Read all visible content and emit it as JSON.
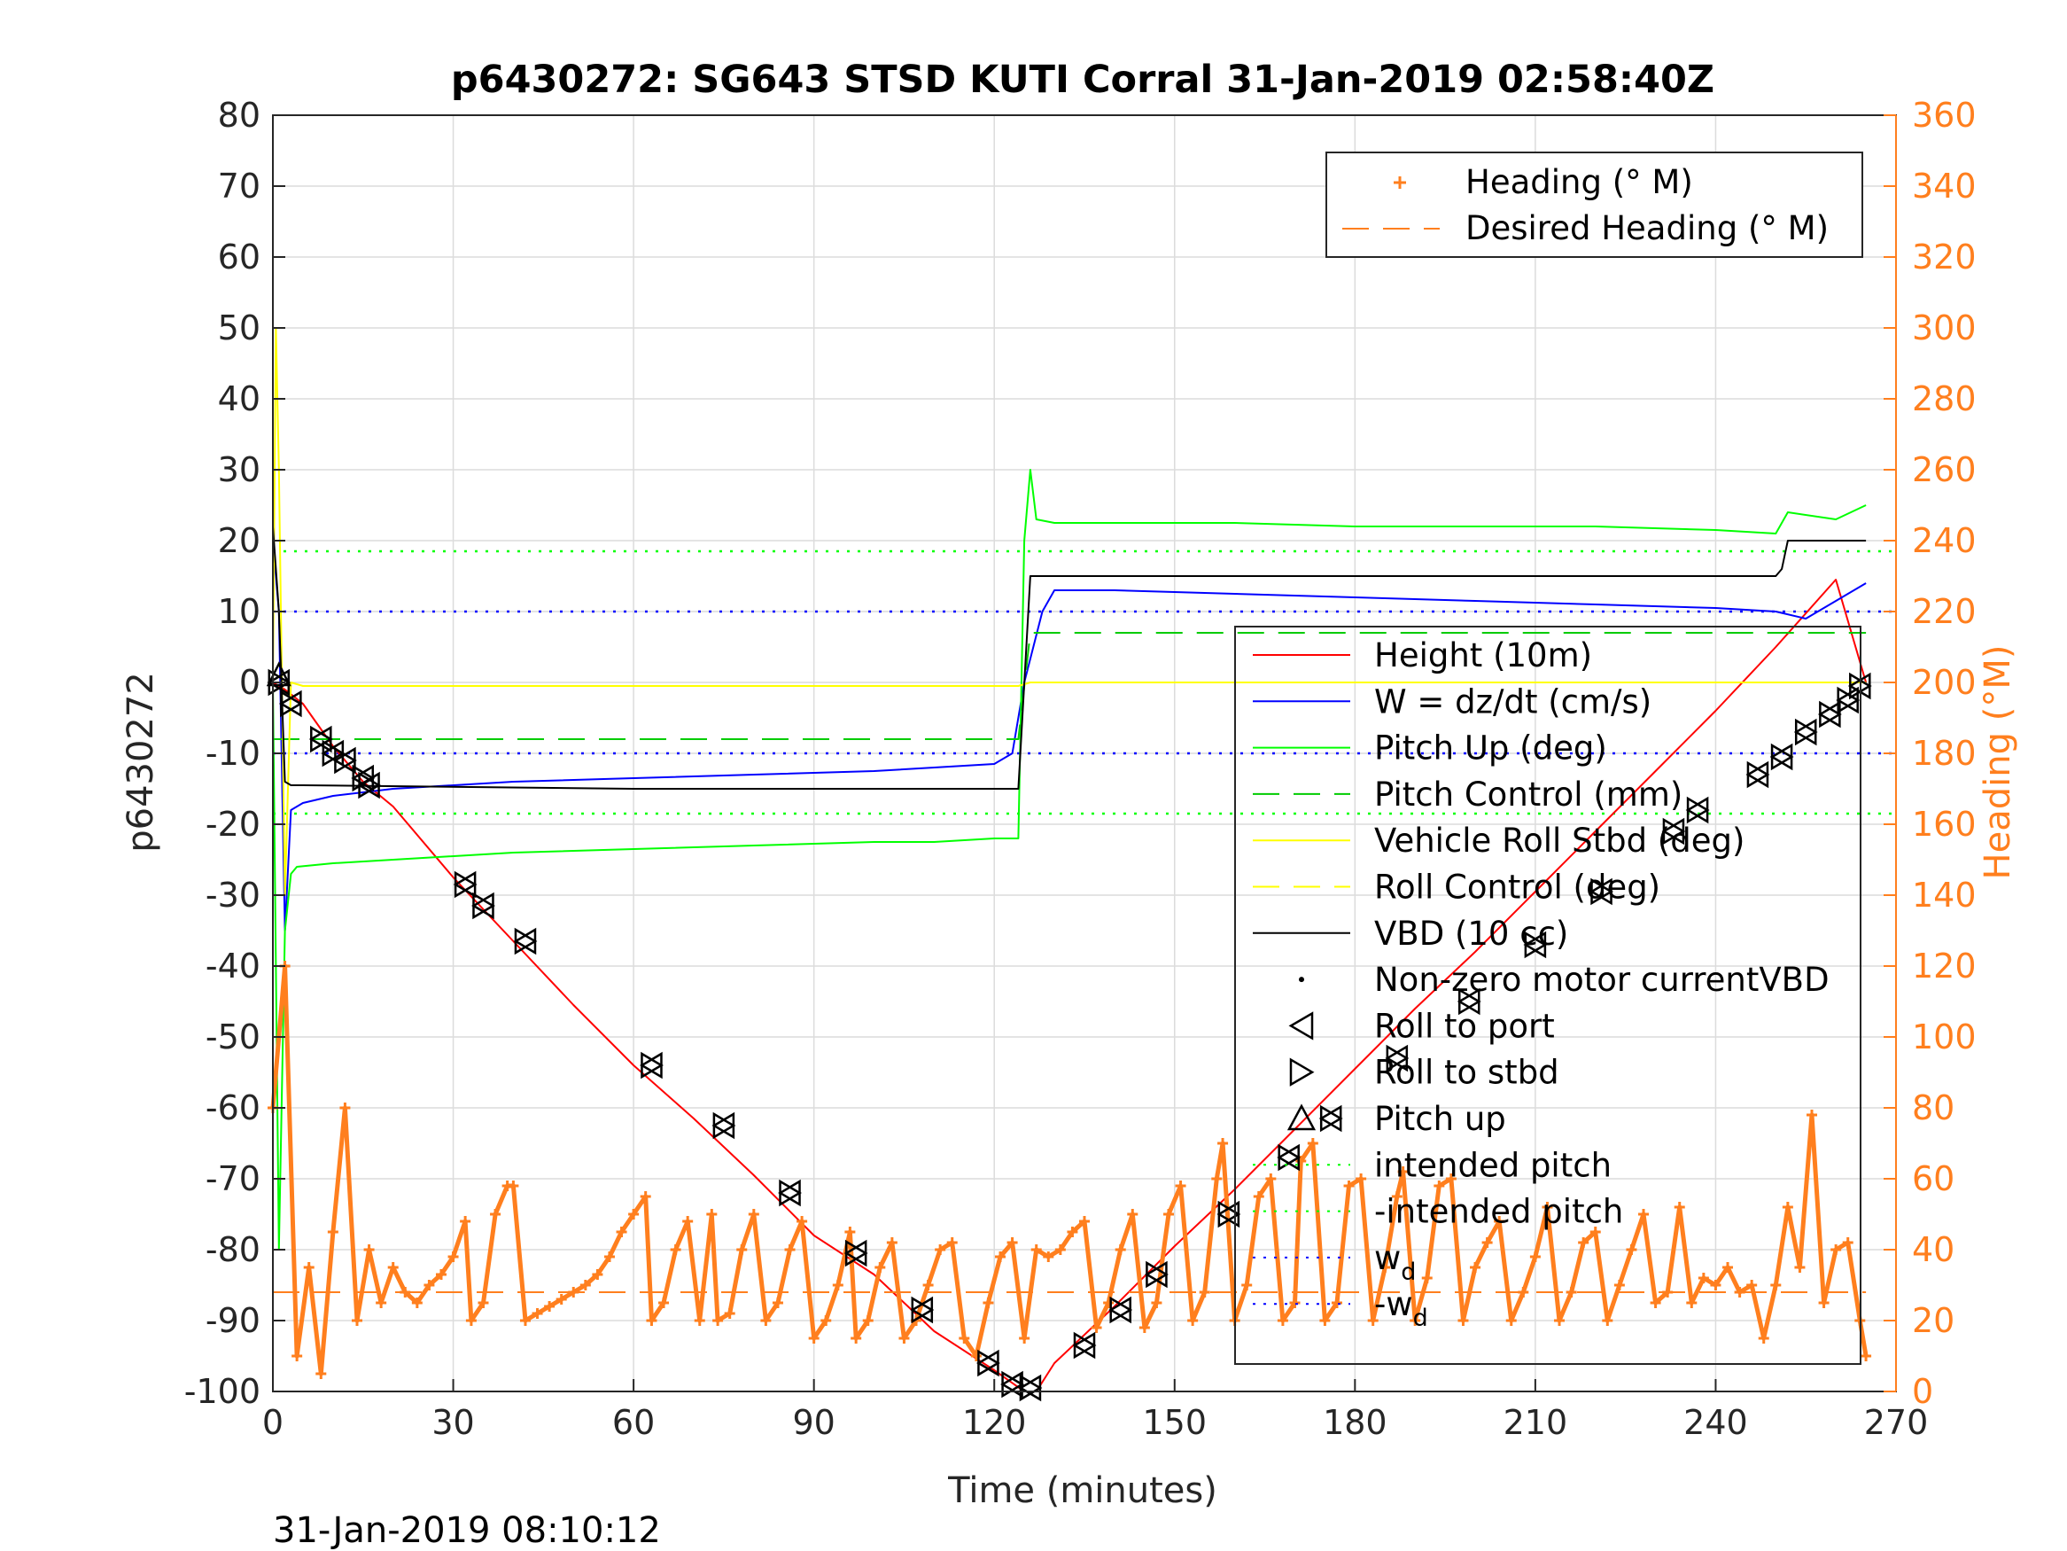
{
  "chart_data": {
    "type": "line",
    "title": "p6430272: SG643 STSD KUTI Corral 31-Jan-2019 02:58:40Z",
    "xlabel": "Time (minutes)",
    "ylabel": "p6430272",
    "y2label": "Heading (°M)",
    "footer": "31-Jan-2019 08:10:12",
    "xlim": [
      0,
      270
    ],
    "ylim": [
      -100,
      80
    ],
    "y2lim": [
      0,
      360
    ],
    "xticks": [
      0,
      30,
      60,
      90,
      120,
      150,
      180,
      210,
      240,
      270
    ],
    "yticks": [
      -100,
      -90,
      -80,
      -70,
      -60,
      -50,
      -40,
      -30,
      -20,
      -10,
      0,
      10,
      20,
      30,
      40,
      50,
      60,
      70,
      80
    ],
    "y2ticks": [
      0,
      20,
      40,
      60,
      80,
      100,
      120,
      140,
      160,
      180,
      200,
      220,
      240,
      260,
      280,
      300,
      320,
      340,
      360
    ],
    "grid": true,
    "colors": {
      "height": "#ff0000",
      "w": "#0000ff",
      "pitch_up": "#00ff00",
      "pitch_control": "#00cc00",
      "roll": "#ffff00",
      "vbd": "#000000",
      "heading": "#ff7f1e",
      "intended_pitch": "#00ff00",
      "wd": "#0000ff"
    },
    "legend_right": {
      "placement": "top-right",
      "entries": [
        "Heading (° M)",
        "Desired Heading (° M)"
      ]
    },
    "legend_left": {
      "placement": "center-right",
      "entries": [
        "Height (10m)",
        "W = dz/dt (cm/s)",
        "Pitch Up (deg)",
        "Pitch Control (mm)",
        "Vehicle Roll Stbd (deg)",
        "Roll Control (deg)",
        "VBD (10 cc)",
        "Non-zero motor currentVBD",
        "Roll to port",
        "Roll to stbd",
        "Pitch up",
        "intended pitch",
        "-intended pitch",
        "w",
        "-w"
      ],
      "subscript": "d"
    },
    "series": [
      {
        "name": "Height (10m)",
        "axis": "left",
        "x": [
          0,
          2,
          5,
          10,
          15,
          20,
          30,
          40,
          50,
          60,
          70,
          80,
          90,
          100,
          110,
          120,
          125,
          127,
          130,
          140,
          150,
          160,
          170,
          180,
          190,
          200,
          210,
          220,
          230,
          240,
          250,
          260,
          265
        ],
        "y": [
          0,
          -1,
          -3,
          -9,
          -14,
          -17.5,
          -27.5,
          -36.5,
          -45.5,
          -54,
          -61.5,
          -69.5,
          -78,
          -83.5,
          -91.5,
          -97,
          -100,
          -100,
          -96,
          -88,
          -79.5,
          -71.5,
          -63,
          -54.5,
          -46,
          -38,
          -29.5,
          -21,
          -12.5,
          -4,
          5,
          14.5,
          0
        ]
      },
      {
        "name": "W = dz/dt (cm/s)",
        "axis": "left",
        "x": [
          0,
          1,
          2,
          3,
          5,
          10,
          20,
          40,
          60,
          80,
          100,
          110,
          120,
          123,
          125,
          128,
          130,
          140,
          160,
          180,
          200,
          220,
          240,
          250,
          255,
          265
        ],
        "y": [
          20,
          10,
          -35,
          -18,
          -17,
          -16,
          -15,
          -14,
          -13.5,
          -13,
          -12.5,
          -12,
          -11.5,
          -10,
          0,
          10,
          13,
          13,
          12.5,
          12,
          11.5,
          11,
          10.5,
          10,
          9,
          14
        ]
      },
      {
        "name": "Pitch Up (deg)",
        "axis": "left",
        "x": [
          0,
          1,
          2,
          3,
          4,
          10,
          20,
          40,
          60,
          80,
          100,
          110,
          120,
          124,
          125,
          126,
          127,
          130,
          140,
          160,
          180,
          200,
          220,
          240,
          250,
          252,
          260,
          265
        ],
        "y": [
          0,
          -80,
          -35,
          -27,
          -26,
          -25.5,
          -25,
          -24,
          -23.5,
          -23,
          -22.5,
          -22.5,
          -22,
          -22,
          20,
          30,
          23,
          22.5,
          22.5,
          22.5,
          22,
          22,
          22,
          21.5,
          21,
          24,
          23,
          25
        ]
      },
      {
        "name": "Pitch Control (mm)",
        "axis": "left",
        "x": [
          0,
          1,
          2,
          124,
          126,
          265
        ],
        "y": [
          -8,
          -8,
          -8,
          -8,
          7,
          7
        ]
      },
      {
        "name": "Vehicle Roll Stbd (deg)",
        "axis": "left",
        "x": [
          0,
          0.5,
          1,
          2,
          3,
          5,
          10,
          30,
          60,
          90,
          120,
          124,
          126,
          130,
          160,
          190,
          220,
          250,
          265
        ],
        "y": [
          0,
          50,
          30,
          -30,
          0,
          -0.5,
          -0.5,
          -0.5,
          -0.5,
          -0.5,
          -0.5,
          -0.5,
          0,
          0,
          0,
          0,
          0,
          0,
          0
        ]
      },
      {
        "name": "VBD (10 cc)",
        "axis": "left",
        "x": [
          0,
          1,
          2,
          3,
          5,
          60,
          124,
          126,
          128,
          200,
          250,
          251,
          252,
          265
        ],
        "y": [
          22,
          10,
          -14,
          -14.5,
          -14.5,
          -15,
          -15,
          15,
          15,
          15,
          15,
          16,
          20,
          20
        ]
      },
      {
        "name": "Desired Heading (° M)",
        "axis": "right",
        "x": [
          0,
          265
        ],
        "y": [
          28,
          28
        ]
      },
      {
        "name": "Heading (° M)",
        "axis": "right",
        "x": [
          0,
          2,
          4,
          6,
          8,
          10,
          12,
          14,
          16,
          18,
          20,
          22,
          24,
          26,
          28,
          30,
          32,
          33,
          35,
          37,
          39,
          40,
          42,
          44,
          46,
          48,
          50,
          52,
          54,
          56,
          58,
          60,
          62,
          63,
          65,
          67,
          69,
          71,
          73,
          74,
          76,
          78,
          80,
          82,
          84,
          86,
          88,
          90,
          92,
          94,
          96,
          97,
          99,
          101,
          103,
          105,
          107,
          109,
          111,
          113,
          115,
          117,
          119,
          121,
          123,
          125,
          127,
          129,
          131,
          133,
          135,
          137,
          139,
          141,
          143,
          145,
          147,
          149,
          151,
          153,
          155,
          157,
          158,
          160,
          162,
          164,
          166,
          168,
          170,
          171,
          173,
          175,
          177,
          179,
          181,
          183,
          185,
          187,
          188,
          190,
          192,
          194,
          196,
          198,
          200,
          202,
          204,
          206,
          208,
          210,
          212,
          214,
          216,
          218,
          220,
          222,
          224,
          226,
          228,
          230,
          232,
          234,
          236,
          238,
          240,
          242,
          244,
          246,
          248,
          250,
          252,
          254,
          256,
          258,
          260,
          262,
          264,
          265
        ],
        "y": [
          80,
          120,
          10,
          35,
          5,
          45,
          80,
          20,
          40,
          25,
          35,
          28,
          25,
          30,
          33,
          38,
          48,
          20,
          25,
          50,
          58,
          58,
          20,
          22,
          24,
          26,
          28,
          30,
          33,
          38,
          45,
          50,
          55,
          20,
          25,
          40,
          48,
          20,
          50,
          20,
          22,
          40,
          50,
          20,
          25,
          40,
          48,
          15,
          20,
          30,
          45,
          15,
          20,
          35,
          42,
          15,
          20,
          30,
          40,
          42,
          15,
          10,
          25,
          38,
          42,
          15,
          40,
          38,
          40,
          45,
          48,
          18,
          25,
          40,
          50,
          18,
          25,
          50,
          58,
          20,
          28,
          60,
          70,
          20,
          30,
          55,
          60,
          20,
          25,
          65,
          70,
          20,
          25,
          58,
          60,
          20,
          35,
          55,
          62,
          20,
          32,
          58,
          60,
          20,
          35,
          42,
          48,
          20,
          28,
          38,
          52,
          20,
          28,
          42,
          45,
          20,
          30,
          40,
          50,
          25,
          28,
          52,
          25,
          32,
          30,
          35,
          28,
          30,
          15,
          30,
          52,
          35,
          78,
          25,
          40,
          42,
          20,
          10
        ]
      }
    ],
    "marker_points": {
      "name": "Roll to port / Roll to stbd",
      "x": [
        1,
        3,
        8,
        10,
        12,
        15,
        16,
        32,
        35,
        42,
        63,
        75,
        86,
        97,
        108,
        119,
        123,
        126,
        135,
        141,
        147,
        159,
        169,
        176,
        187,
        199,
        210,
        221,
        233,
        237,
        247,
        251,
        255,
        259,
        262,
        264
      ],
      "y": [
        0,
        -3,
        -8,
        -10,
        -11,
        -13.5,
        -14.5,
        -28.5,
        -31.5,
        -36.5,
        -54,
        -62.5,
        -72,
        -80.5,
        -88.5,
        -96,
        -99,
        -99.5,
        -93.5,
        -88.5,
        -83.5,
        -75,
        -67,
        -61.5,
        -53,
        -45,
        -37,
        -29.5,
        -21,
        -18,
        -13,
        -10.5,
        -7,
        -4.5,
        -2.5,
        -0.5
      ]
    }
  }
}
